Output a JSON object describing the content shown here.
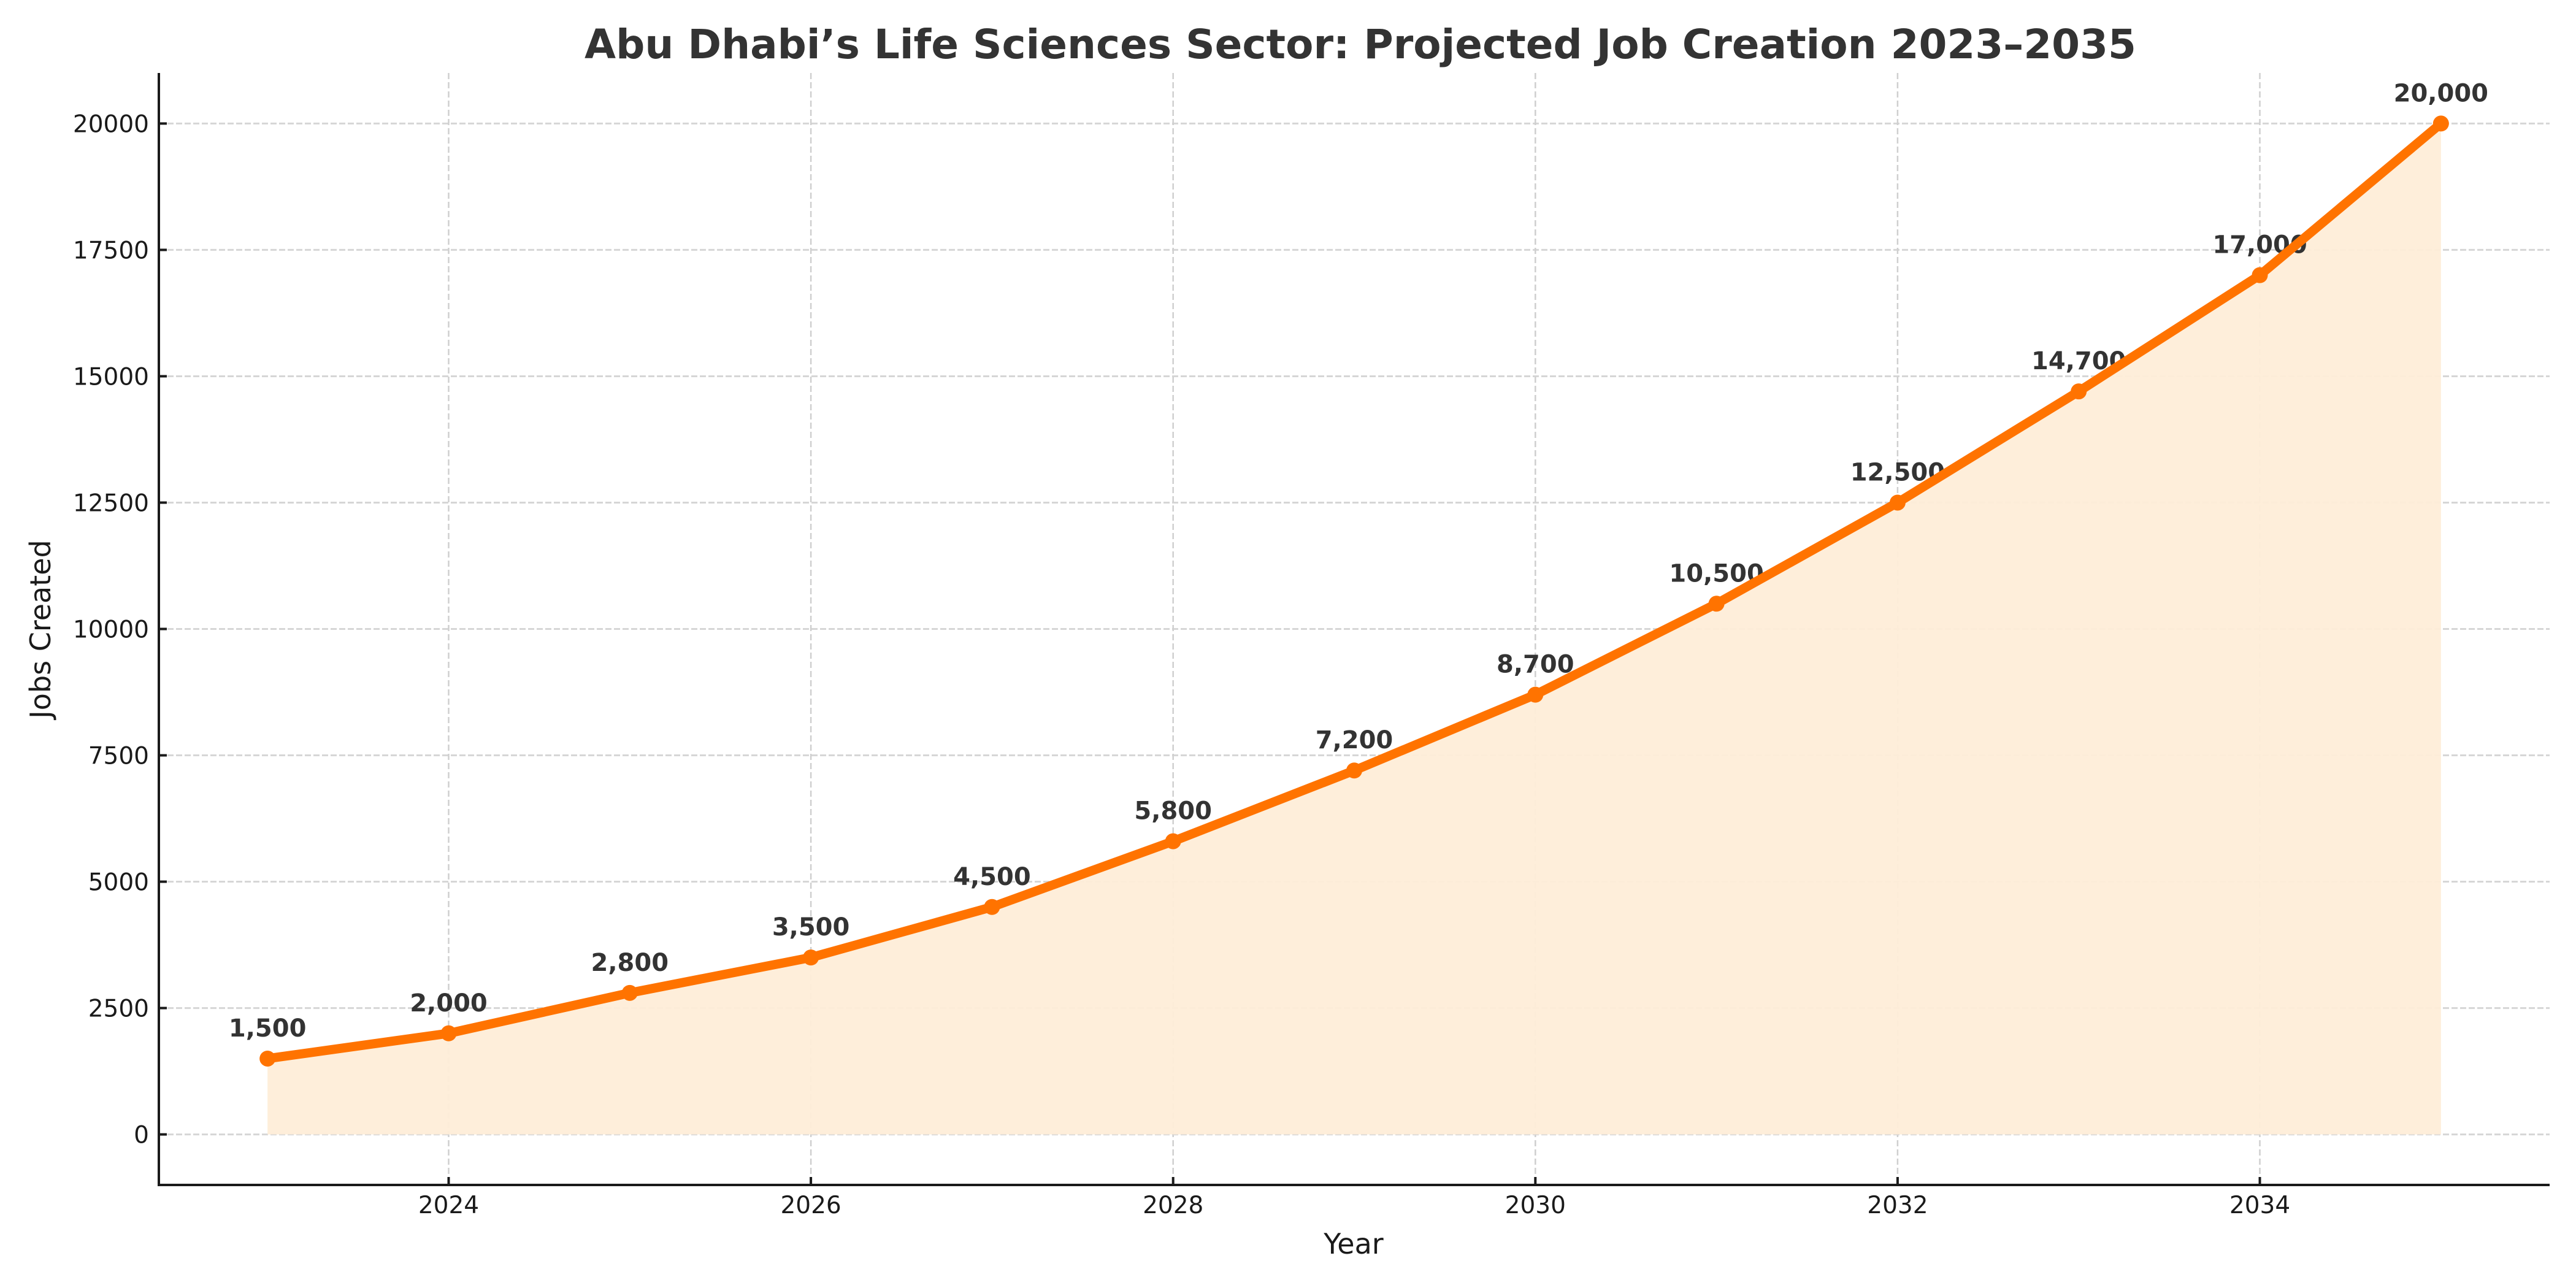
{
  "chart_data": {
    "type": "area",
    "title": "Abu Dhabi’s Life Sciences Sector: Projected Job Creation 2023–2035",
    "xlabel": "Year",
    "ylabel": "Jobs Created",
    "x": [
      2023,
      2024,
      2025,
      2026,
      2027,
      2028,
      2029,
      2030,
      2031,
      2032,
      2033,
      2034,
      2035
    ],
    "series": [
      {
        "name": "Jobs Created",
        "values": [
          1500,
          2000,
          2800,
          3500,
          4500,
          5800,
          7200,
          8700,
          10500,
          12500,
          14700,
          17000,
          20000
        ],
        "labels": [
          "1,500",
          "2,000",
          "2,800",
          "3,500",
          "4,500",
          "5,800",
          "7,200",
          "8,700",
          "10,500",
          "12,500",
          "14,700",
          "17,000",
          "20,000"
        ],
        "line_color": "#FF7300",
        "fill_color": "#FEEDD8",
        "markers": true
      }
    ],
    "xlim": [
      2022.4,
      2035.6
    ],
    "ylim": [
      -1000,
      21000
    ],
    "xticks": [
      2024,
      2026,
      2028,
      2030,
      2032,
      2034
    ],
    "xtick_labels": [
      "2024",
      "2026",
      "2028",
      "2030",
      "2032",
      "2034"
    ],
    "yticks": [
      0,
      2500,
      5000,
      7500,
      10000,
      12500,
      15000,
      17500,
      20000
    ],
    "ytick_labels": [
      "0",
      "2500",
      "5000",
      "7500",
      "10000",
      "12500",
      "15000",
      "17500",
      "20000"
    ],
    "grid": true,
    "grid_style": "dashed",
    "legend": "none"
  }
}
